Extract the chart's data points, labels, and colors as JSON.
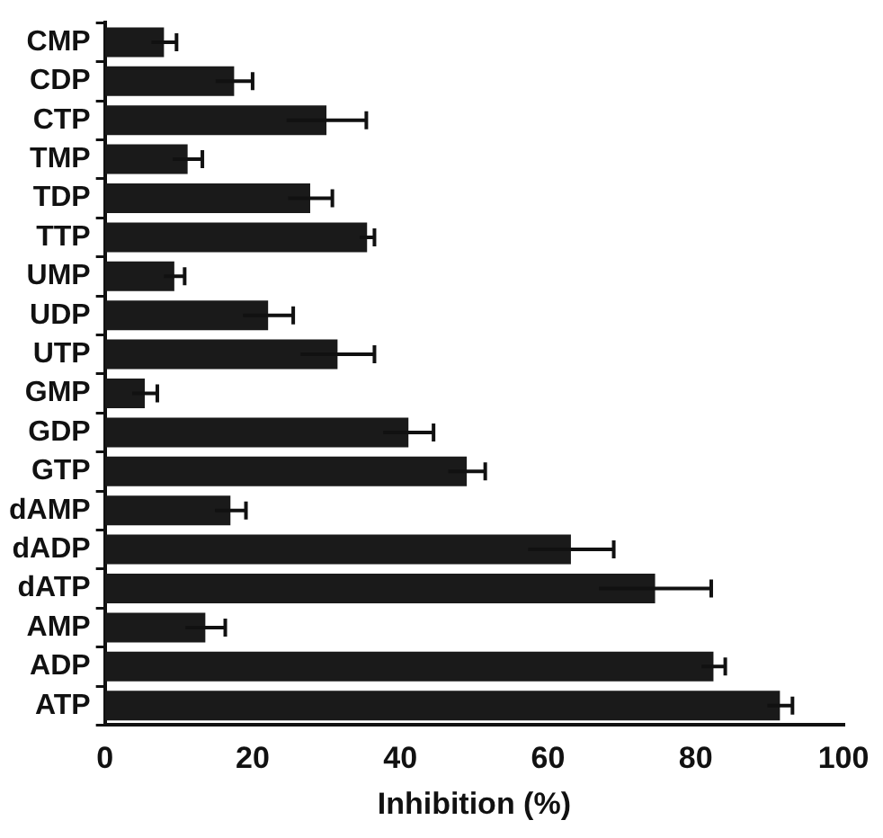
{
  "chart_data": {
    "type": "bar",
    "orientation": "horizontal",
    "xlabel": "Inhibition (%)",
    "categories": [
      "CMP",
      "CDP",
      "CTP",
      "TMP",
      "TDP",
      "TTP",
      "UMP",
      "UDP",
      "UTP",
      "GMP",
      "GDP",
      "GTP",
      "dAMP",
      "dADP",
      "dATP",
      "AMP",
      "ADP",
      "ATP"
    ],
    "values": [
      8.0,
      17.5,
      30.0,
      11.2,
      27.8,
      35.5,
      9.4,
      22.1,
      31.5,
      5.4,
      41.1,
      49.0,
      17.0,
      63.1,
      74.5,
      13.6,
      82.4,
      91.4
    ],
    "errors": [
      1.7,
      2.5,
      5.4,
      2.0,
      3.0,
      1.0,
      1.4,
      3.4,
      5.0,
      1.7,
      3.4,
      2.5,
      2.1,
      5.8,
      7.6,
      2.7,
      1.6,
      1.7
    ],
    "color": "#1a1a1a",
    "xlim": [
      0,
      100
    ],
    "xticks": [
      0,
      20,
      40,
      60,
      80,
      100
    ],
    "grid": false,
    "legend": false
  }
}
